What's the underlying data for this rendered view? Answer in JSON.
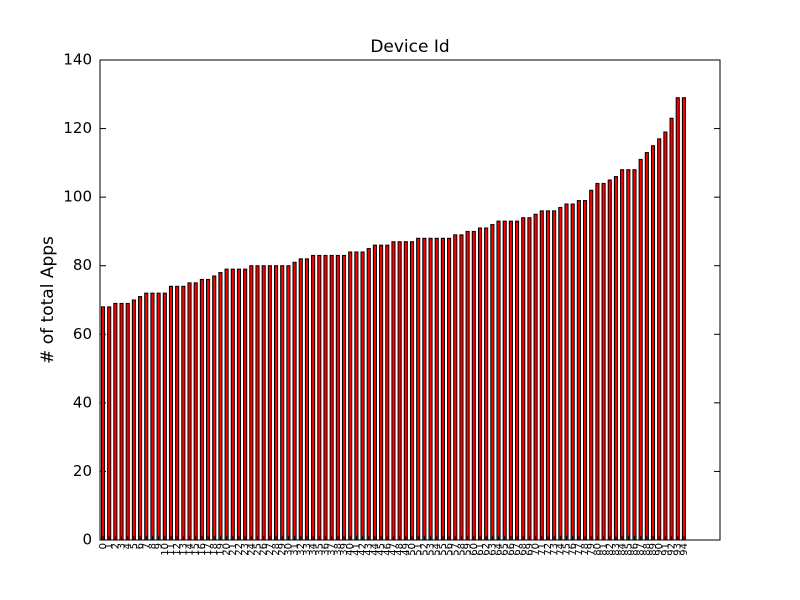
{
  "chart_data": {
    "type": "bar",
    "title": "Device Id",
    "ylabel": "# of total Apps",
    "categories": [
      "0",
      "1",
      "2",
      "3",
      "4",
      "5",
      "6",
      "7",
      "8",
      "9",
      "10",
      "11",
      "12",
      "13",
      "14",
      "15",
      "16",
      "17",
      "18",
      "19",
      "20",
      "21",
      "22",
      "23",
      "24",
      "25",
      "26",
      "27",
      "28",
      "29",
      "30",
      "31",
      "32",
      "33",
      "34",
      "35",
      "36",
      "37",
      "38",
      "39",
      "40",
      "41",
      "42",
      "43",
      "44",
      "45",
      "46",
      "47",
      "48",
      "49",
      "50",
      "51",
      "52",
      "53",
      "54",
      "55",
      "56",
      "57",
      "58",
      "59",
      "60",
      "61",
      "62",
      "63",
      "64",
      "65",
      "66",
      "67",
      "68",
      "69",
      "70",
      "71",
      "72",
      "73",
      "74",
      "75",
      "76",
      "77",
      "78",
      "79",
      "80",
      "81",
      "82",
      "83",
      "84",
      "85",
      "86",
      "87",
      "88",
      "89",
      "90",
      "91",
      "92",
      "93",
      "94"
    ],
    "values": [
      68,
      68,
      69,
      69,
      69,
      70,
      71,
      72,
      72,
      72,
      72,
      74,
      74,
      74,
      75,
      75,
      76,
      76,
      77,
      78,
      79,
      79,
      79,
      79,
      80,
      80,
      80,
      80,
      80,
      80,
      80,
      81,
      82,
      82,
      83,
      83,
      83,
      83,
      83,
      83,
      84,
      84,
      84,
      85,
      86,
      86,
      86,
      87,
      87,
      87,
      87,
      88,
      88,
      88,
      88,
      88,
      88,
      89,
      89,
      90,
      90,
      91,
      91,
      92,
      93,
      93,
      93,
      93,
      94,
      94,
      95,
      96,
      96,
      96,
      97,
      98,
      98,
      99,
      99,
      102,
      104,
      104,
      105,
      106,
      108,
      108,
      108,
      111,
      113,
      115,
      117,
      119,
      123,
      129,
      129
    ],
    "color": "#ff0000",
    "ylim": [
      0,
      140
    ],
    "yticks": [
      0,
      20,
      40,
      60,
      80,
      100,
      120,
      140
    ]
  }
}
